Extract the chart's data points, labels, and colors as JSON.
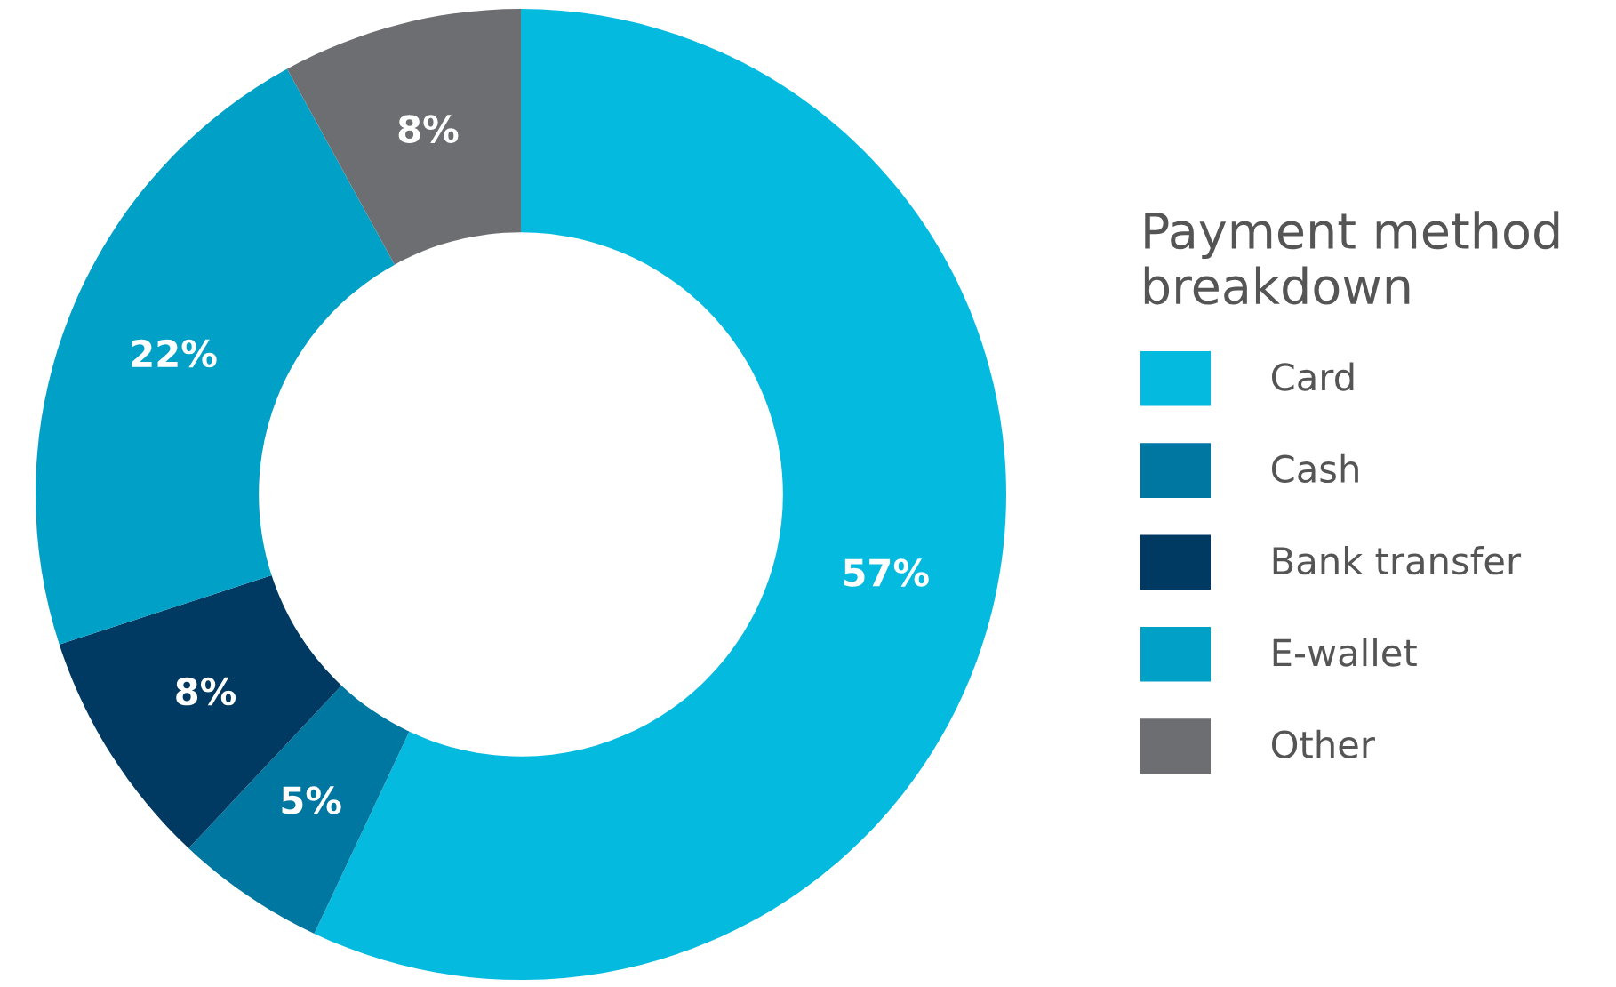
{
  "chart_data": {
    "type": "donut",
    "legend_title": "Payment method\nbreakdown",
    "categories": [
      "Card",
      "Cash",
      "Bank transfer",
      "E-wallet",
      "Other"
    ],
    "values": [
      57,
      5,
      8,
      22,
      8
    ],
    "colors": [
      "#05badf",
      "#0077a1",
      "#003a63",
      "#00a0c7",
      "#6d6e72"
    ],
    "value_labels": [
      "57%",
      "5%",
      "8%",
      "22%",
      "8%"
    ],
    "legend": "right"
  }
}
